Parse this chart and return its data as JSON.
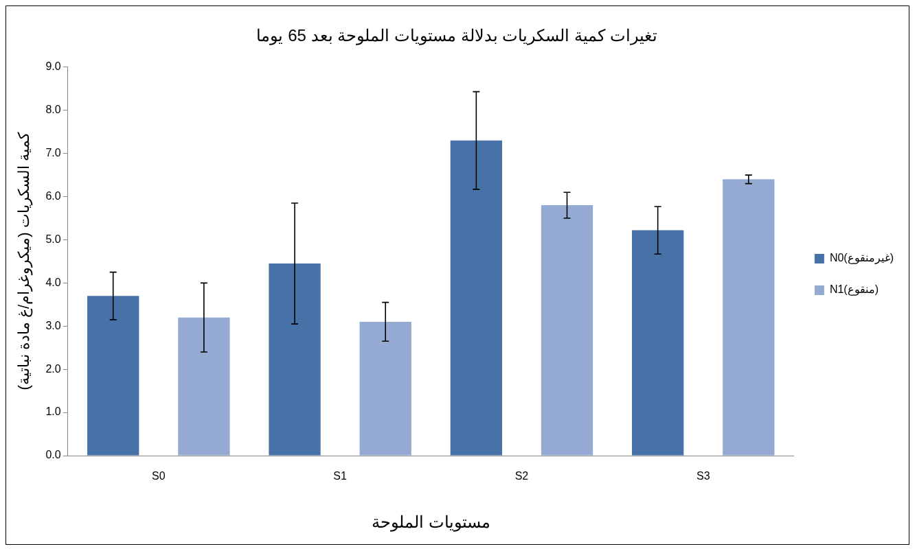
{
  "chart_data": {
    "type": "bar",
    "title": "تغيرات كمية السكريات بدلالة مستويات الملوحة بعد 65 يوما",
    "xlabel": "مستويات الملوحة",
    "ylabel": "كمية السكريات (ميكروغرام/غ مادة نباتية)",
    "categories": [
      "S0",
      "S1",
      "S2",
      "S3"
    ],
    "series": [
      {
        "name": "N0(غيرمنقوع)",
        "color": "#4672a8",
        "values": [
          3.7,
          4.45,
          7.3,
          5.22
        ],
        "errors": [
          0.55,
          1.4,
          1.13,
          0.55
        ]
      },
      {
        "name": "N1(منقوع)",
        "color": "#95aad2",
        "values": [
          3.2,
          3.1,
          5.8,
          6.4
        ],
        "errors": [
          0.8,
          0.45,
          0.3,
          0.1
        ]
      }
    ],
    "ylim": [
      0,
      9
    ],
    "yticks": [
      {
        "value": 0,
        "label": "0.0"
      },
      {
        "value": 1,
        "label": "1.0"
      },
      {
        "value": 2,
        "label": "2.0"
      },
      {
        "value": 3,
        "label": "3.0"
      },
      {
        "value": 4,
        "label": "4.0"
      },
      {
        "value": 5,
        "label": "5.0"
      },
      {
        "value": 6,
        "label": "6.0"
      },
      {
        "value": 7,
        "label": "7.0"
      },
      {
        "value": 8,
        "label": "8.0"
      },
      {
        "value": 9,
        "label": "9.0"
      }
    ],
    "grid": false,
    "legend": "right"
  }
}
